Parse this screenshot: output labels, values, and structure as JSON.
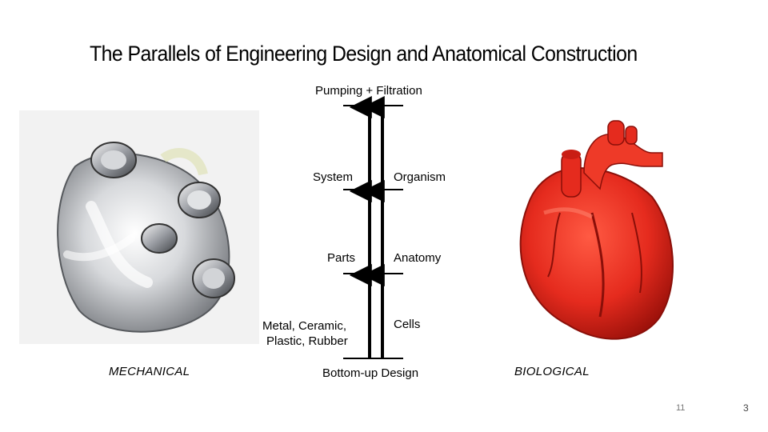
{
  "slide": {
    "title": "The Parallels of Engineering Design and Anatomical Construction"
  },
  "diagram": {
    "top_label": "Pumping + Filtration",
    "levels": [
      {
        "left": "System",
        "right": "Organism"
      },
      {
        "left": "Parts",
        "right": "Anatomy"
      },
      {
        "left_line1": "Metal, Ceramic,",
        "left_line2": "Plastic, Rubber",
        "right": "Cells"
      }
    ],
    "bottom_label": "Bottom-up Design"
  },
  "captions": {
    "left": "MECHANICAL",
    "right": "BIOLOGICAL"
  },
  "footer": {
    "slide_counter": "11",
    "page_number": "3"
  },
  "colors": {
    "heart_red": "#e52b1e",
    "heart_dark": "#b3160f",
    "metal": "#c9ccd1"
  },
  "images": {
    "left": "mechanical-heart-image",
    "right": "biological-heart-image"
  }
}
